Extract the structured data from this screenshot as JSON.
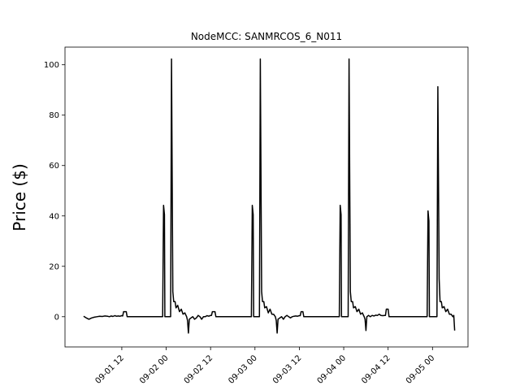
{
  "chart_data": {
    "type": "line",
    "title": "NodeMCC: SANMRCOS_6_N011",
    "xlabel": "",
    "ylabel": "Price ($)",
    "xlim": [
      -0.14,
      4.4
    ],
    "ylim": [
      -12,
      107
    ],
    "grid": false,
    "yticks": [
      0,
      20,
      40,
      60,
      80,
      100
    ],
    "xticks": [
      {
        "x": 0.5,
        "label": "09-01 12"
      },
      {
        "x": 1.0,
        "label": "09-02 00"
      },
      {
        "x": 1.5,
        "label": "09-02 12"
      },
      {
        "x": 2.0,
        "label": "09-03 00"
      },
      {
        "x": 2.5,
        "label": "09-03 12"
      },
      {
        "x": 3.0,
        "label": "09-04 00"
      },
      {
        "x": 3.5,
        "label": "09-04 12"
      },
      {
        "x": 4.0,
        "label": "09-05 00"
      }
    ],
    "x_unit": "days from 09-01 00",
    "series": [
      {
        "color": "#000000",
        "points": [
          [
            0.07,
            0.2
          ],
          [
            0.1,
            -0.5
          ],
          [
            0.13,
            -1.0
          ],
          [
            0.16,
            -0.5
          ],
          [
            0.19,
            -0.2
          ],
          [
            0.22,
            0.0
          ],
          [
            0.25,
            0.2
          ],
          [
            0.28,
            0.1
          ],
          [
            0.31,
            0.3
          ],
          [
            0.34,
            0.2
          ],
          [
            0.36,
            0.0
          ],
          [
            0.38,
            0.3
          ],
          [
            0.4,
            0.1
          ],
          [
            0.42,
            0.4
          ],
          [
            0.44,
            0.2
          ],
          [
            0.46,
            0.3
          ],
          [
            0.48,
            0.2
          ],
          [
            0.5,
            0.4
          ],
          [
            0.51,
            0.3
          ],
          [
            0.52,
            2.0
          ],
          [
            0.55,
            2.0
          ],
          [
            0.56,
            0.0
          ],
          [
            0.6,
            0.0
          ],
          [
            0.7,
            0.0
          ],
          [
            0.8,
            0.0
          ],
          [
            0.9,
            0.0
          ],
          [
            0.95,
            0.0
          ],
          [
            0.96,
            0.0
          ],
          [
            0.97,
            44.2
          ],
          [
            0.98,
            40.5
          ],
          [
            0.985,
            0.0
          ],
          [
            1.02,
            0.0
          ],
          [
            1.05,
            0.0
          ],
          [
            1.06,
            102.3
          ],
          [
            1.075,
            10.0
          ],
          [
            1.085,
            6.0
          ],
          [
            1.1,
            6.0
          ],
          [
            1.11,
            3.5
          ],
          [
            1.13,
            4.5
          ],
          [
            1.15,
            2.0
          ],
          [
            1.17,
            3.0
          ],
          [
            1.19,
            1.0
          ],
          [
            1.21,
            1.5
          ],
          [
            1.23,
            0.0
          ],
          [
            1.24,
            -1.5
          ],
          [
            1.25,
            -6.5
          ],
          [
            1.26,
            -1.0
          ],
          [
            1.28,
            -0.5
          ],
          [
            1.3,
            0.0
          ],
          [
            1.32,
            -1.0
          ],
          [
            1.34,
            -0.5
          ],
          [
            1.36,
            0.5
          ],
          [
            1.38,
            0.0
          ],
          [
            1.4,
            -1.0
          ],
          [
            1.42,
            0.0
          ],
          [
            1.44,
            0.0
          ],
          [
            1.46,
            0.4
          ],
          [
            1.48,
            0.2
          ],
          [
            1.5,
            0.5
          ],
          [
            1.51,
            0.5
          ],
          [
            1.52,
            2.0
          ],
          [
            1.55,
            2.0
          ],
          [
            1.56,
            0.0
          ],
          [
            1.7,
            0.0
          ],
          [
            1.9,
            0.0
          ],
          [
            1.96,
            0.0
          ],
          [
            1.97,
            44.2
          ],
          [
            1.98,
            40.5
          ],
          [
            1.985,
            0.0
          ],
          [
            2.05,
            0.0
          ],
          [
            2.06,
            102.3
          ],
          [
            2.075,
            10.0
          ],
          [
            2.085,
            6.0
          ],
          [
            2.1,
            6.0
          ],
          [
            2.11,
            3.5
          ],
          [
            2.13,
            4.0
          ],
          [
            2.15,
            1.5
          ],
          [
            2.17,
            3.0
          ],
          [
            2.19,
            1.0
          ],
          [
            2.21,
            1.0
          ],
          [
            2.23,
            0.0
          ],
          [
            2.24,
            -1.5
          ],
          [
            2.25,
            -6.5
          ],
          [
            2.26,
            -1.0
          ],
          [
            2.28,
            -0.5
          ],
          [
            2.3,
            0.0
          ],
          [
            2.32,
            -1.0
          ],
          [
            2.34,
            0.0
          ],
          [
            2.36,
            0.5
          ],
          [
            2.38,
            0.0
          ],
          [
            2.4,
            -0.5
          ],
          [
            2.42,
            0.0
          ],
          [
            2.44,
            0.2
          ],
          [
            2.46,
            0.3
          ],
          [
            2.48,
            0.2
          ],
          [
            2.5,
            0.4
          ],
          [
            2.51,
            0.4
          ],
          [
            2.52,
            2.0
          ],
          [
            2.54,
            2.0
          ],
          [
            2.55,
            0.0
          ],
          [
            2.7,
            0.0
          ],
          [
            2.9,
            0.0
          ],
          [
            2.95,
            0.0
          ],
          [
            2.96,
            44.2
          ],
          [
            2.97,
            40.5
          ],
          [
            2.975,
            0.0
          ],
          [
            3.05,
            0.0
          ],
          [
            3.06,
            102.3
          ],
          [
            3.075,
            10.0
          ],
          [
            3.085,
            6.0
          ],
          [
            3.1,
            6.0
          ],
          [
            3.11,
            3.5
          ],
          [
            3.13,
            4.0
          ],
          [
            3.15,
            2.0
          ],
          [
            3.17,
            3.0
          ],
          [
            3.19,
            1.0
          ],
          [
            3.21,
            1.5
          ],
          [
            3.23,
            0.0
          ],
          [
            3.24,
            -1.0
          ],
          [
            3.25,
            -5.5
          ],
          [
            3.26,
            0.0
          ],
          [
            3.28,
            0.5
          ],
          [
            3.3,
            0.0
          ],
          [
            3.32,
            0.5
          ],
          [
            3.34,
            0.3
          ],
          [
            3.36,
            0.6
          ],
          [
            3.38,
            0.5
          ],
          [
            3.4,
            1.0
          ],
          [
            3.42,
            0.5
          ],
          [
            3.44,
            0.4
          ],
          [
            3.46,
            0.5
          ],
          [
            3.47,
            0.5
          ],
          [
            3.48,
            3.0
          ],
          [
            3.5,
            3.0
          ],
          [
            3.51,
            0.0
          ],
          [
            3.6,
            0.0
          ],
          [
            3.8,
            0.0
          ],
          [
            3.94,
            0.0
          ],
          [
            3.95,
            42.0
          ],
          [
            3.96,
            38.0
          ],
          [
            3.965,
            0.0
          ],
          [
            4.05,
            0.0
          ],
          [
            4.06,
            91.3
          ],
          [
            4.075,
            15.0
          ],
          [
            4.085,
            6.0
          ],
          [
            4.1,
            6.0
          ],
          [
            4.11,
            3.5
          ],
          [
            4.13,
            4.0
          ],
          [
            4.15,
            2.0
          ],
          [
            4.17,
            3.0
          ],
          [
            4.19,
            1.0
          ],
          [
            4.21,
            1.0
          ],
          [
            4.23,
            0.0
          ],
          [
            4.24,
            0.5
          ],
          [
            4.25,
            -5.5
          ]
        ]
      }
    ]
  }
}
